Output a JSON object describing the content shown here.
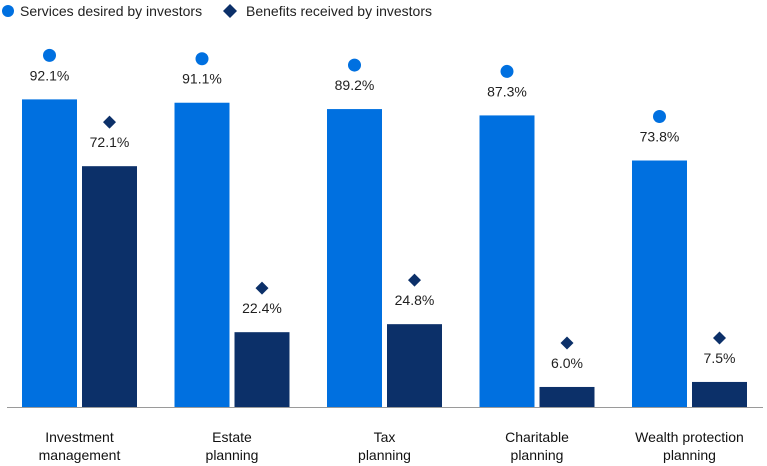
{
  "chart_data": {
    "type": "bar",
    "categories": [
      [
        "Investment",
        "management"
      ],
      [
        "Estate",
        "planning"
      ],
      [
        "Tax",
        "planning"
      ],
      [
        "Charitable",
        "planning"
      ],
      [
        "Wealth protection",
        "planning"
      ]
    ],
    "series": [
      {
        "name": "Services desired by investors",
        "values": [
          92.1,
          91.1,
          89.2,
          87.3,
          73.8
        ],
        "labels": [
          "92.1%",
          "91.1%",
          "89.2%",
          "87.3%",
          "73.8%"
        ],
        "color": "#0070e0",
        "marker": "circle"
      },
      {
        "name": "Benefits received by investors",
        "values": [
          72.1,
          22.4,
          24.8,
          6.0,
          7.5
        ],
        "labels": [
          "72.1%",
          "22.4%",
          "24.8%",
          "6.0%",
          "7.5%"
        ],
        "color": "#0c3069",
        "marker": "diamond"
      }
    ],
    "ylim": [
      0,
      100
    ],
    "grid": false,
    "legend": "top-left"
  }
}
